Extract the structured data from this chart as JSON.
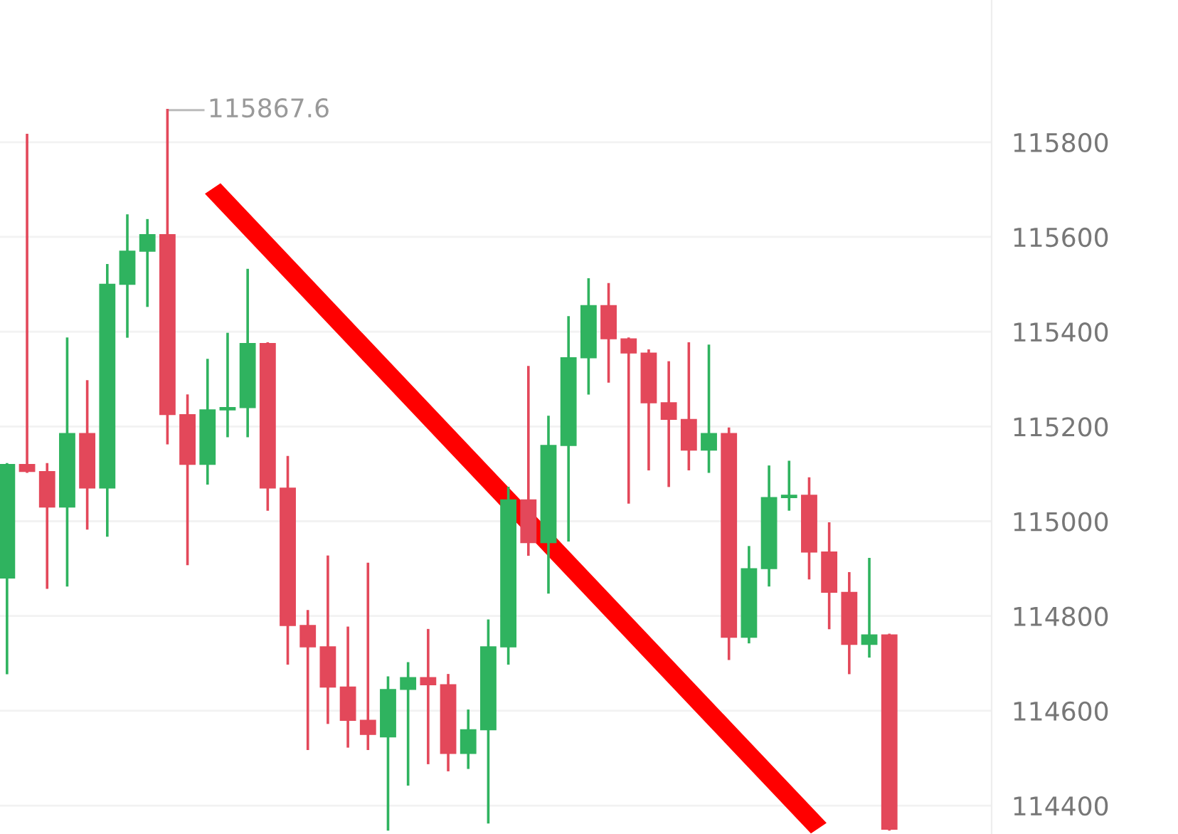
{
  "chart_data": {
    "type": "candlestick",
    "categories": [
      null,
      null,
      null,
      null,
      null,
      null,
      null,
      null,
      null,
      null,
      null,
      null,
      null,
      null,
      null,
      null,
      null,
      null,
      null,
      null,
      null,
      null,
      null,
      null,
      null,
      null,
      null,
      null,
      null,
      null,
      null,
      null,
      null,
      null,
      null,
      null,
      null,
      null,
      null,
      null,
      null,
      null,
      null,
      null,
      null
    ],
    "ohlc": [
      [
        114880,
        115120,
        114680,
        115120
      ],
      [
        115120,
        115815,
        115105,
        115105
      ],
      [
        115105,
        115120,
        114860,
        115030
      ],
      [
        115030,
        115385,
        114865,
        115185
      ],
      [
        115185,
        115295,
        114985,
        115070
      ],
      [
        115070,
        115540,
        114970,
        115500
      ],
      [
        115500,
        115645,
        115390,
        115570
      ],
      [
        115570,
        115635,
        115455,
        115605
      ],
      [
        115605,
        115867.6,
        115165,
        115225
      ],
      [
        115225,
        115265,
        114910,
        115120
      ],
      [
        115120,
        115340,
        115080,
        115235
      ],
      [
        115235,
        115395,
        115180,
        115240
      ],
      [
        115240,
        115530,
        115180,
        115375
      ],
      [
        115375,
        115375,
        115025,
        115070
      ],
      [
        115070,
        115135,
        114700,
        114780
      ],
      [
        114780,
        114810,
        114520,
        114735
      ],
      [
        114735,
        114925,
        114575,
        114650
      ],
      [
        114650,
        114775,
        114525,
        114580
      ],
      [
        114580,
        114910,
        114520,
        114550
      ],
      [
        114545,
        114670,
        114350,
        114645
      ],
      [
        114645,
        114700,
        114445,
        114670
      ],
      [
        114670,
        114770,
        114490,
        114655
      ],
      [
        114655,
        114675,
        114475,
        114510
      ],
      [
        114510,
        114600,
        114480,
        114560
      ],
      [
        114560,
        114790,
        114365,
        114735
      ],
      [
        114735,
        115070,
        114700,
        115045
      ],
      [
        115045,
        115325,
        114930,
        114955
      ],
      [
        114955,
        115220,
        114850,
        115160
      ],
      [
        115160,
        115430,
        114960,
        115345
      ],
      [
        115345,
        115510,
        115270,
        115455
      ],
      [
        115455,
        115500,
        115295,
        115385
      ],
      [
        115385,
        115385,
        115040,
        115355
      ],
      [
        115355,
        115360,
        115110,
        115250
      ],
      [
        115250,
        115335,
        115075,
        115215
      ],
      [
        115215,
        115375,
        115110,
        115150
      ],
      [
        115150,
        115370,
        115105,
        115185
      ],
      [
        115185,
        115195,
        114710,
        114755
      ],
      [
        114755,
        114945,
        114745,
        114900
      ],
      [
        114900,
        115115,
        114865,
        115050
      ],
      [
        115050,
        115125,
        115025,
        115055
      ],
      [
        115055,
        115090,
        114880,
        114935
      ],
      [
        114935,
        114995,
        114775,
        114850
      ],
      [
        114850,
        114890,
        114680,
        114740
      ],
      [
        114740,
        114920,
        114715,
        114760
      ],
      [
        114760,
        114760,
        114350,
        114350
      ]
    ],
    "colors": [
      "#2fb35f",
      "#e3485a",
      "#e3485a",
      "#2fb35f",
      "#e3485a",
      "#2fb35f",
      "#2fb35f",
      "#2fb35f",
      "#e3485a",
      "#e3485a",
      "#2fb35f",
      "#2fb35f",
      "#2fb35f",
      "#e3485a",
      "#e3485a",
      "#e3485a",
      "#e3485a",
      "#e3485a",
      "#e3485a",
      "#2fb35f",
      "#2fb35f",
      "#e3485a",
      "#e3485a",
      "#2fb35f",
      "#2fb35f",
      "#2fb35f",
      "#e3485a",
      "#2fb35f",
      "#2fb35f",
      "#2fb35f",
      "#e3485a",
      "#e3485a",
      "#e3485a",
      "#e3485a",
      "#e3485a",
      "#2fb35f",
      "#e3485a",
      "#2fb35f",
      "#2fb35f",
      "#2fb35f",
      "#e3485a",
      "#e3485a",
      "#e3485a",
      "#2fb35f",
      "#e3485a"
    ],
    "ylim": [
      114340,
      116100
    ],
    "yticks": [
      114400,
      114600,
      114800,
      115000,
      115200,
      115400,
      115600,
      115800
    ],
    "grid": "y",
    "tick_labels": "y",
    "annotations": [
      "115867.6"
    ]
  }
}
